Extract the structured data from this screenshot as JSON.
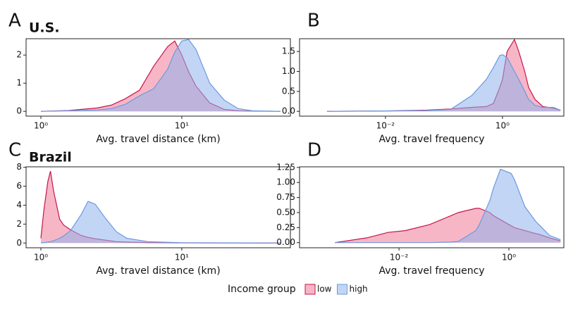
{
  "legend_title": "Income group",
  "chart_data": [
    {
      "type": "density",
      "panel_label": "A",
      "title": "U.S.",
      "x_label": "Avg. travel distance (km)",
      "xscale": "log",
      "xlim": [
        0.785,
        59
      ],
      "xticks": [
        {
          "value": 1,
          "label": "10⁰"
        },
        {
          "value": 10,
          "label": "10¹"
        }
      ],
      "ylim": [
        -0.17,
        2.58
      ],
      "yticks": [
        0,
        1,
        2
      ],
      "x": [
        1,
        1.58,
        2.51,
        3.16,
        3.98,
        5.01,
        6.31,
        7.94,
        8.91,
        10,
        11.2,
        12.6,
        15.8,
        20,
        25.1,
        31.6,
        50.1
      ],
      "series": [
        {
          "name": "low",
          "color": "#c8144b",
          "values": [
            0,
            0.03,
            0.12,
            0.22,
            0.45,
            0.75,
            1.6,
            2.3,
            2.5,
            2.0,
            1.4,
            0.9,
            0.3,
            0.07,
            0.02,
            0.01,
            0
          ]
        },
        {
          "name": "high",
          "color": "#6a9ae0",
          "values": [
            0,
            0.02,
            0.05,
            0.1,
            0.25,
            0.55,
            0.8,
            1.5,
            2.1,
            2.5,
            2.55,
            2.2,
            1.0,
            0.4,
            0.1,
            0.02,
            0
          ]
        }
      ]
    },
    {
      "type": "density",
      "panel_label": "B",
      "x_label": "Avg. travel frequency",
      "xscale": "log",
      "xlim": [
        0.00034,
        11.2
      ],
      "xticks": [
        {
          "value": 0.01,
          "label": "10⁻²"
        },
        {
          "value": 1,
          "label": "10⁰"
        }
      ],
      "ylim": [
        -0.12,
        1.82
      ],
      "yticks": [
        {
          "value": 0,
          "label": "0.0"
        },
        0.5,
        {
          "value": 1,
          "label": "1.0"
        },
        1.5
      ],
      "x": [
        0.001,
        0.01,
        0.05,
        0.13,
        0.3,
        0.53,
        0.7,
        0.9,
        1.0,
        1.2,
        1.6,
        1.9,
        2.4,
        2.8,
        3.6,
        4.9,
        7.4,
        9.8
      ],
      "series": [
        {
          "name": "low",
          "color": "#c8144b",
          "values": [
            0,
            0.01,
            0.03,
            0.06,
            0.1,
            0.12,
            0.2,
            0.6,
            0.8,
            1.5,
            1.8,
            1.5,
            1.0,
            0.6,
            0.3,
            0.12,
            0.08,
            0.03
          ]
        },
        {
          "name": "high",
          "color": "#6a9ae0",
          "values": [
            0,
            0.01,
            0.02,
            0.05,
            0.4,
            0.8,
            1.1,
            1.4,
            1.42,
            1.35,
            1.0,
            0.8,
            0.5,
            0.3,
            0.15,
            0.1,
            0.1,
            0.03
          ]
        }
      ]
    },
    {
      "type": "density",
      "panel_label": "C",
      "title": "Brazil",
      "x_label": "Avg. travel distance (km)",
      "xscale": "log",
      "xlim": [
        0.785,
        59
      ],
      "xticks": [
        {
          "value": 1,
          "label": "10⁰"
        },
        {
          "value": 10,
          "label": "10¹"
        }
      ],
      "ylim": [
        -0.5,
        8.05
      ],
      "yticks": [
        0,
        2,
        4,
        6,
        8
      ],
      "x": [
        1,
        1.05,
        1.12,
        1.17,
        1.23,
        1.36,
        1.45,
        1.62,
        1.93,
        2.16,
        2.43,
        2.88,
        3.43,
        4.07,
        5.75,
        10.2,
        50
      ],
      "series": [
        {
          "name": "low",
          "color": "#c8144b",
          "values": [
            0.5,
            3.5,
            6.5,
            7.6,
            5.5,
            2.5,
            1.9,
            1.4,
            0.8,
            0.6,
            0.45,
            0.3,
            0.15,
            0.1,
            0.05,
            0.02,
            0
          ]
        },
        {
          "name": "high",
          "color": "#6a9ae0",
          "values": [
            0.02,
            0.05,
            0.1,
            0.15,
            0.25,
            0.5,
            0.75,
            1.3,
            3.0,
            4.4,
            4.1,
            2.6,
            1.2,
            0.5,
            0.15,
            0.03,
            0
          ]
        }
      ]
    },
    {
      "type": "density",
      "panel_label": "D",
      "x_label": "Avg. travel frequency",
      "xscale": "log",
      "xlim": [
        0.000155,
        10
      ],
      "xticks": [
        {
          "value": 0.01,
          "label": "10⁻²"
        },
        {
          "value": 1,
          "label": "10⁰"
        }
      ],
      "ylim": [
        -0.085,
        1.26
      ],
      "yticks": [
        {
          "value": 0,
          "label": "0.00"
        },
        0.25,
        {
          "value": 0.5,
          "label": "0.50"
        },
        0.75,
        {
          "value": 1,
          "label": "1.00"
        },
        1.25
      ],
      "x": [
        0.00068,
        0.0026,
        0.0063,
        0.013,
        0.036,
        0.089,
        0.12,
        0.25,
        0.29,
        0.45,
        0.52,
        0.7,
        1.1,
        1.26,
        1.95,
        3.1,
        3.5,
        5.5,
        8.7
      ],
      "series": [
        {
          "name": "low",
          "color": "#c8144b",
          "values": [
            0,
            0.08,
            0.17,
            0.2,
            0.3,
            0.45,
            0.5,
            0.57,
            0.57,
            0.5,
            0.45,
            0.38,
            0.28,
            0.25,
            0.2,
            0.15,
            0.14,
            0.08,
            0.03
          ]
        },
        {
          "name": "high",
          "color": "#6a9ae0",
          "values": [
            0,
            0,
            0,
            0,
            0,
            0.01,
            0.02,
            0.2,
            0.3,
            0.7,
            0.9,
            1.22,
            1.15,
            1.05,
            0.6,
            0.35,
            0.3,
            0.12,
            0.05
          ]
        }
      ]
    }
  ]
}
